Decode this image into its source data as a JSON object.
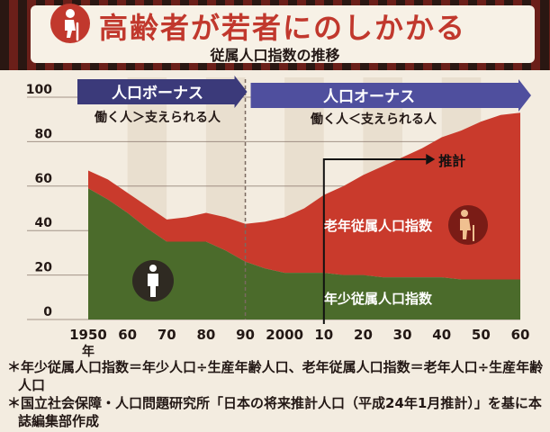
{
  "title": "高齢者が若者にのしかかる",
  "subtitle": "従属人口指数の推移",
  "colors": {
    "elderly": "#c93a2c",
    "youth": "#4b6b2b",
    "bonus_arrow": "#3b3a7a",
    "onus_arrow": "#4f4f9e",
    "header_dark": "#2a1712",
    "header_red": "#6b1f19"
  },
  "icons": {
    "title": "elderly-person-icon",
    "child": "person-icon",
    "elder": "elderly-person-icon"
  },
  "chart_data": {
    "type": "area",
    "title": "従属人口指数の推移",
    "x": [
      1950,
      1955,
      1960,
      1965,
      1970,
      1975,
      1980,
      1985,
      1990,
      1995,
      2000,
      2005,
      2010,
      2015,
      2020,
      2025,
      2030,
      2035,
      2040,
      2045,
      2050,
      2055,
      2060
    ],
    "x_tick_labels": [
      "1950",
      "60",
      "70",
      "80",
      "90",
      "2000",
      "10",
      "20",
      "30",
      "40",
      "50",
      "60"
    ],
    "x_year_unit": "年",
    "y_ticks": [
      0,
      20,
      40,
      60,
      80,
      100
    ],
    "ylim": [
      0,
      100
    ],
    "series": [
      {
        "name": "年少従属人口指数",
        "values": [
          59,
          54,
          48,
          41,
          35,
          35,
          35,
          31,
          26,
          23,
          21,
          21,
          21,
          20,
          20,
          19,
          19,
          19,
          19,
          18,
          18,
          18,
          18
        ]
      },
      {
        "name": "老年従属人口指数",
        "values": [
          8,
          9,
          9,
          10,
          10,
          11,
          13,
          15,
          17,
          21,
          25,
          29,
          35,
          40,
          45,
          50,
          54,
          58,
          63,
          67,
          71,
          74,
          75
        ]
      }
    ],
    "annotations": {
      "bonus": {
        "label": "人口ボーナス",
        "sub": "働く人＞支えられる人"
      },
      "onus": {
        "label": "人口オーナス",
        "sub": "働く人＜支えられる人"
      },
      "projection": {
        "label": "推計",
        "from_year": 2010
      }
    }
  },
  "notes": [
    "＊年少従属人口指数＝年少人口÷生産年齢人口、老年従属人口指数＝老年人口÷生産年齢人口",
    "＊国立社会保障・人口問題研究所「日本の将来推計人口（平成24年1月推計）」を基に本誌編集部作成"
  ]
}
